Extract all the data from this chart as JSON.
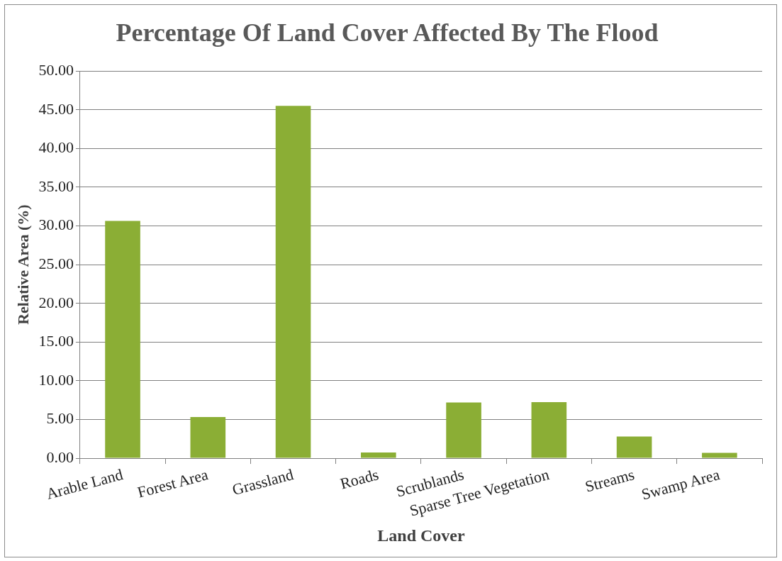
{
  "chart_data": {
    "type": "bar",
    "title": "Percentage Of Land Cover Affected By The Flood",
    "xlabel": "Land Cover",
    "ylabel": "Relative Area (%)",
    "categories": [
      "Arable Land",
      "Forest Area",
      "Grassland",
      "Roads",
      "Scrublands",
      "Sparse Tree Vegetation",
      "Streams",
      "Swamp Area"
    ],
    "values": [
      30.65,
      5.33,
      45.5,
      0.75,
      7.2,
      7.25,
      2.8,
      0.7
    ],
    "color": "#8bae35",
    "ylim": [
      0,
      50
    ],
    "yticks": [
      {
        "value": 0,
        "label": "0.00"
      },
      {
        "value": 5,
        "label": "5.00"
      },
      {
        "value": 10,
        "label": "10.00"
      },
      {
        "value": 15,
        "label": "15.00"
      },
      {
        "value": 20,
        "label": "20.00"
      },
      {
        "value": 25,
        "label": "25.00"
      },
      {
        "value": 30,
        "label": "30.00"
      },
      {
        "value": 35,
        "label": "35.00"
      },
      {
        "value": 40,
        "label": "40.00"
      },
      {
        "value": 45,
        "label": "45.00"
      },
      {
        "value": 50,
        "label": "50.00"
      }
    ],
    "grid": "y"
  }
}
